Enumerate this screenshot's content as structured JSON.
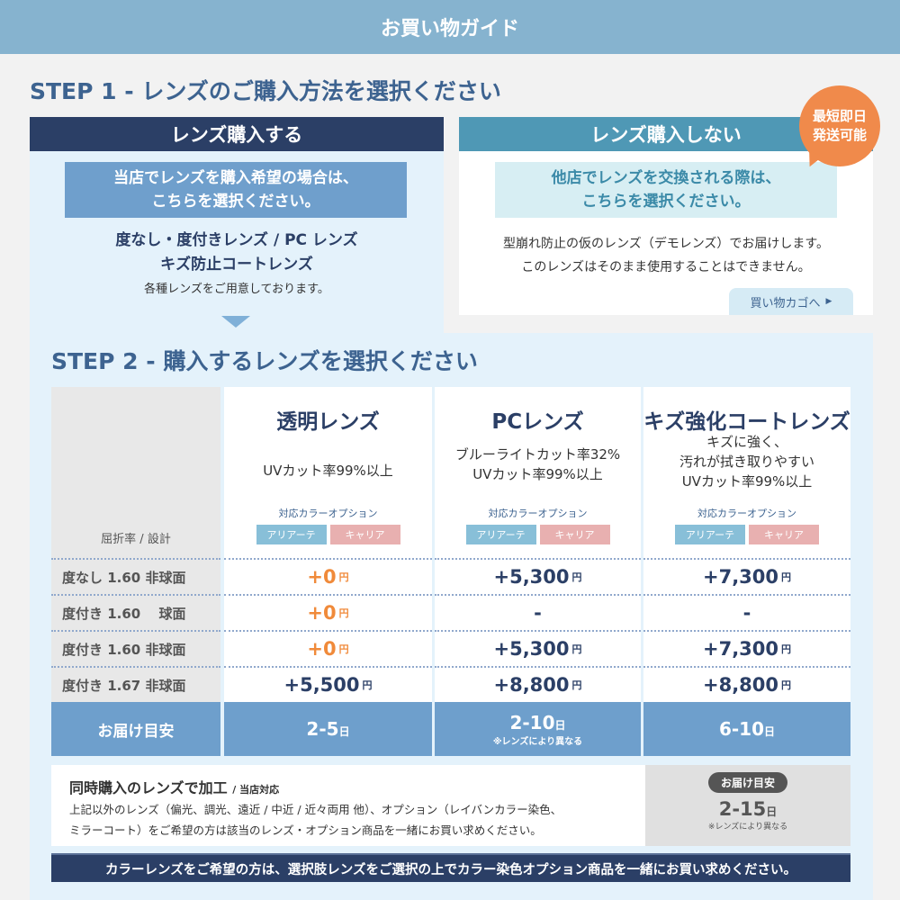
{
  "banner": {
    "title": "お買い物ガイド"
  },
  "step1": {
    "title": "STEP 1 - レンズのご購入方法を選択ください",
    "buy": {
      "header": "レンズ購入する",
      "box_line1": "当店でレンズを購入希望の場合は、",
      "box_line2": "こちらを選択ください。",
      "line1": "度なし・度付きレンズ / PC レンズ",
      "line2": "キズ防止コートレンズ",
      "line3": "各種レンズをご用意しております。"
    },
    "nobuy": {
      "header": "レンズ購入しない",
      "box_line1": "他店でレンズを交換される際は、",
      "box_line2": "こちらを選択ください。",
      "line1": "型崩れ防止の仮のレンズ（デモレンズ）でお届けします。",
      "line2": "このレンズはそのまま使用することはできません。",
      "cart_button": "買い物カゴへ",
      "badge_line1": "最短即日",
      "badge_line2": "発送可能"
    }
  },
  "step2": {
    "title": "STEP 2 - 購入するレンズを選択ください",
    "label_header": "屈折率 / 設計",
    "option_label": "対応カラーオプション",
    "option_alia": "アリアーテ",
    "option_carrier": "キャリア",
    "rows": [
      "度なし 1.60 非球面",
      "度付き 1.60 　球面",
      "度付き 1.60 非球面",
      "度付き 1.67 非球面"
    ],
    "yen": "円",
    "day": "日",
    "delivery_label": "お届け目安",
    "lenses": [
      {
        "name": "透明レンズ",
        "desc1": "UVカット率99%以上",
        "desc2": "",
        "desc3": "",
        "prices": [
          "+0",
          "+0",
          "+0",
          "+5,500"
        ],
        "delivery": "2-5",
        "delivery_note": ""
      },
      {
        "name": "PCレンズ",
        "desc1": "ブルーライトカット率32%",
        "desc2": "UVカット率99%以上",
        "desc3": "",
        "prices": [
          "+5,300",
          "-",
          "+5,300",
          "+8,800"
        ],
        "delivery": "2-10",
        "delivery_note": "※レンズにより異なる"
      },
      {
        "name": "キズ強化コートレンズ",
        "desc1": "キズに強く、",
        "desc2": "汚れが拭き取りやすい",
        "desc3": "UVカット率99%以上",
        "prices": [
          "+7,300",
          "-",
          "+7,300",
          "+8,800"
        ],
        "delivery": "6-10",
        "delivery_note": ""
      }
    ]
  },
  "processing": {
    "title": "同時購入のレンズで加工",
    "subtitle": "/ 当店対応",
    "line1": "上記以外のレンズ（偏光、調光、遠近 / 中近 / 近々両用 他）、オプション（レイバンカラー染色、",
    "line2": "ミラーコート）をご希望の方は該当のレンズ・オプション商品を一緒にお買い求めください。",
    "delivery_label": "お届け目安",
    "delivery": "2-15",
    "day": "日",
    "note": "※レンズにより異なる"
  },
  "footer": {
    "notice": "カラーレンズをご希望の方は、選択肢レンズをご選択の上でカラー染色オプション商品を一緒にお買い求めください。"
  }
}
